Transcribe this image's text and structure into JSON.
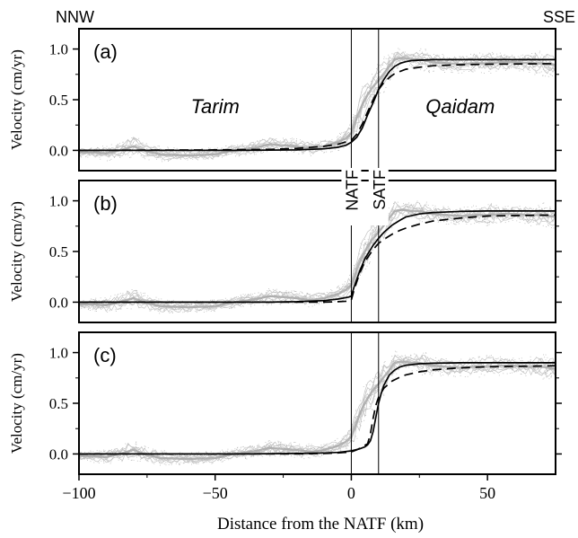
{
  "chart_data": {
    "type": "line",
    "header_left": "NNW",
    "header_right": "SSE",
    "xlabel": "Distance from the NATF (km)",
    "ylabel": "Velocity (cm/yr)",
    "xlim": [
      -100,
      75
    ],
    "ylim": [
      -0.2,
      1.2
    ],
    "xticks": [
      -100,
      -50,
      0,
      50
    ],
    "xticklabels": [
      "−100",
      "−50",
      "0",
      "50"
    ],
    "yticks": [
      0.0,
      0.5,
      1.0
    ],
    "yticklabels": [
      "0.0",
      "0.5",
      "1.0"
    ],
    "fault_lines": [
      {
        "name": "NATF",
        "x": 0
      },
      {
        "name": "SATF",
        "x": 10
      }
    ],
    "region_labels": {
      "left": "Tarim",
      "right": "Qaidam"
    },
    "colors": {
      "observations": "#aaaaaa",
      "model": "#000000"
    },
    "panels": [
      {
        "label": "(a)",
        "show_region_labels": true,
        "show_fault_labels": false,
        "series": [
          {
            "style": "solid",
            "x": [
              -100,
              -40,
              -20,
              -10,
              -5,
              -2,
              0,
              2,
              4,
              6,
              8,
              10,
              12,
              14,
              16,
              18,
              20,
              22,
              25,
              30,
              40,
              50,
              75
            ],
            "y": [
              0.0,
              0.0,
              0.005,
              0.015,
              0.03,
              0.05,
              0.08,
              0.13,
              0.22,
              0.35,
              0.47,
              0.6,
              0.7,
              0.78,
              0.83,
              0.86,
              0.875,
              0.885,
              0.89,
              0.895,
              0.895,
              0.895,
              0.895
            ]
          },
          {
            "style": "dashed",
            "x": [
              -100,
              -50,
              -30,
              -20,
              -10,
              -5,
              0,
              2,
              4,
              6,
              8,
              10,
              12,
              14,
              16,
              18,
              20,
              25,
              30,
              40,
              50,
              75
            ],
            "y": [
              0.0,
              0.005,
              0.01,
              0.02,
              0.04,
              0.06,
              0.1,
              0.16,
              0.26,
              0.38,
              0.5,
              0.6,
              0.67,
              0.72,
              0.76,
              0.78,
              0.8,
              0.82,
              0.835,
              0.845,
              0.85,
              0.855
            ]
          }
        ]
      },
      {
        "label": "(b)",
        "show_region_labels": false,
        "show_fault_labels": true,
        "series": [
          {
            "style": "solid",
            "x": [
              -100,
              -30,
              -20,
              -10,
              -5,
              -1,
              0,
              1,
              3,
              5,
              8,
              10,
              12,
              15,
              18,
              20,
              25,
              30,
              40,
              50,
              75
            ],
            "y": [
              0.0,
              0.0,
              0.005,
              0.015,
              0.03,
              0.05,
              0.06,
              0.15,
              0.3,
              0.43,
              0.56,
              0.63,
              0.69,
              0.76,
              0.81,
              0.84,
              0.87,
              0.885,
              0.895,
              0.9,
              0.9
            ]
          },
          {
            "style": "dashed",
            "x": [
              -100,
              -20,
              -10,
              -5,
              -1,
              0,
              1,
              3,
              5,
              8,
              10,
              12,
              15,
              18,
              20,
              25,
              30,
              40,
              50,
              75
            ],
            "y": [
              0.0,
              0.0,
              0.0,
              0.005,
              0.01,
              0.02,
              0.12,
              0.28,
              0.4,
              0.52,
              0.58,
              0.62,
              0.67,
              0.71,
              0.73,
              0.77,
              0.8,
              0.83,
              0.85,
              0.86
            ]
          }
        ]
      },
      {
        "label": "(c)",
        "show_region_labels": false,
        "show_fault_labels": false,
        "series": [
          {
            "style": "solid",
            "x": [
              -100,
              -40,
              -20,
              -10,
              -5,
              0,
              3,
              5,
              6,
              7,
              8,
              9,
              10,
              11,
              12,
              14,
              16,
              18,
              20,
              25,
              30,
              40,
              50,
              75
            ],
            "y": [
              0.0,
              0.0,
              0.005,
              0.01,
              0.015,
              0.03,
              0.05,
              0.07,
              0.09,
              0.13,
              0.22,
              0.36,
              0.5,
              0.6,
              0.68,
              0.78,
              0.83,
              0.86,
              0.875,
              0.89,
              0.895,
              0.9,
              0.9,
              0.9
            ]
          },
          {
            "style": "dashed",
            "x": [
              -100,
              -40,
              -20,
              -10,
              -5,
              0,
              2,
              4,
              5,
              6,
              7,
              8,
              9,
              10,
              12,
              15,
              18,
              20,
              25,
              30,
              40,
              50,
              75
            ],
            "y": [
              0.0,
              0.0,
              0.0,
              0.005,
              0.01,
              0.02,
              0.04,
              0.07,
              0.085,
              0.1,
              0.2,
              0.35,
              0.48,
              0.56,
              0.65,
              0.72,
              0.76,
              0.78,
              0.81,
              0.83,
              0.85,
              0.86,
              0.87
            ]
          }
        ]
      }
    ],
    "observation_envelope": {
      "x": [
        -100,
        -95,
        -90,
        -85,
        -80,
        -75,
        -70,
        -60,
        -50,
        -45,
        -40,
        -35,
        -30,
        -25,
        -20,
        -15,
        -10,
        -5,
        -2,
        0,
        2,
        4,
        6,
        8,
        10,
        12,
        14,
        16,
        18,
        20,
        22,
        25,
        28,
        30,
        35,
        40,
        45,
        50,
        55,
        60,
        65,
        70,
        75
      ],
      "y_low": [
        -0.06,
        -0.08,
        -0.1,
        -0.08,
        -0.06,
        -0.09,
        -0.11,
        -0.1,
        -0.09,
        -0.06,
        -0.05,
        -0.04,
        -0.02,
        -0.02,
        -0.04,
        -0.05,
        -0.02,
        0.0,
        0.02,
        0.05,
        0.15,
        0.25,
        0.35,
        0.45,
        0.5,
        0.58,
        0.68,
        0.78,
        0.83,
        0.84,
        0.82,
        0.79,
        0.77,
        0.78,
        0.77,
        0.76,
        0.77,
        0.75,
        0.78,
        0.8,
        0.76,
        0.74,
        0.72
      ],
      "y_high": [
        0.02,
        0.04,
        0.05,
        0.1,
        0.15,
        0.08,
        0.04,
        0.02,
        0.03,
        0.06,
        0.08,
        0.1,
        0.14,
        0.13,
        0.12,
        0.1,
        0.1,
        0.16,
        0.22,
        0.3,
        0.5,
        0.65,
        0.74,
        0.82,
        0.88,
        0.93,
        0.98,
        1.02,
        1.0,
        0.98,
        0.99,
        1.02,
        1.0,
        0.96,
        0.95,
        0.94,
        0.96,
        0.98,
        0.97,
        0.95,
        0.96,
        0.99,
        0.96
      ],
      "y_mid": [
        -0.02,
        -0.02,
        -0.03,
        0.0,
        0.04,
        -0.01,
        -0.04,
        -0.05,
        -0.04,
        -0.01,
        0.01,
        0.03,
        0.06,
        0.05,
        0.04,
        0.02,
        0.04,
        0.08,
        0.12,
        0.17,
        0.32,
        0.45,
        0.55,
        0.63,
        0.69,
        0.76,
        0.83,
        0.9,
        0.91,
        0.91,
        0.9,
        0.9,
        0.88,
        0.87,
        0.86,
        0.85,
        0.86,
        0.86,
        0.87,
        0.87,
        0.86,
        0.86,
        0.84
      ]
    }
  }
}
